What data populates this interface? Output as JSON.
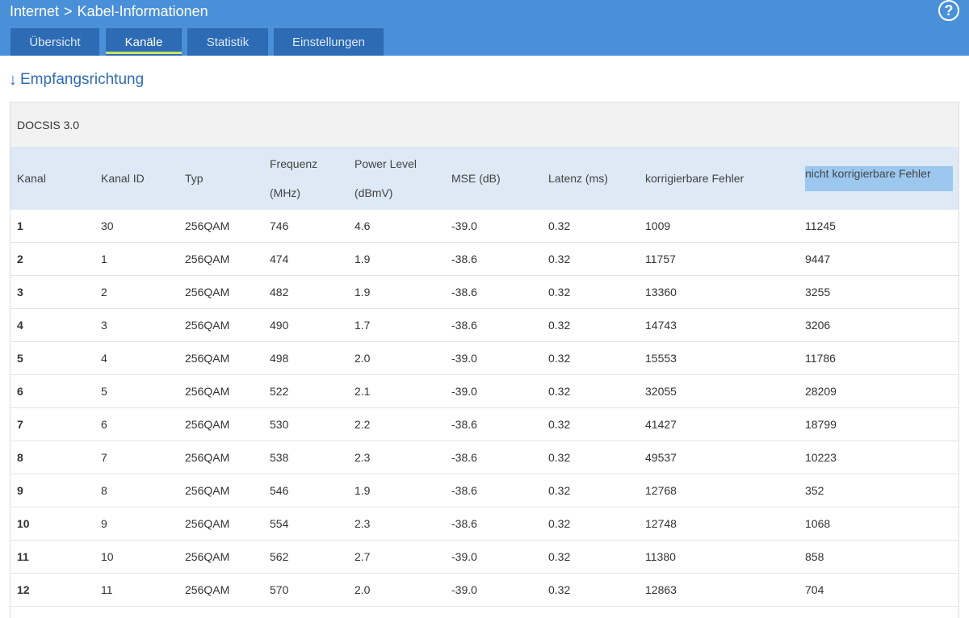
{
  "breadcrumb": {
    "root": "Internet",
    "separator": ">",
    "current": "Kabel-Informationen"
  },
  "help_label": "?",
  "tabs": [
    {
      "label": "Übersicht",
      "active": false
    },
    {
      "label": "Kanäle",
      "active": true
    },
    {
      "label": "Statistik",
      "active": false
    },
    {
      "label": "Einstellungen",
      "active": false
    }
  ],
  "section": {
    "arrow": "↓",
    "title": "Empfangsrichtung"
  },
  "panel_title": "DOCSIS 3.0",
  "columns": {
    "kanal": "Kanal",
    "kanal_id": "Kanal ID",
    "typ": "Typ",
    "frequenz_1": "Frequenz",
    "frequenz_2": "(MHz)",
    "power_1": "Power Level",
    "power_2": "(dBmV)",
    "mse": "MSE (dB)",
    "latenz": "Latenz (ms)",
    "korr": "korrigierbare Fehler",
    "nicht_korr": "nicht korrigierbare Fehler"
  },
  "rows": [
    [
      "1",
      "30",
      "256QAM",
      "746",
      "4.6",
      "-39.0",
      "0.32",
      "1009",
      "11245"
    ],
    [
      "2",
      "1",
      "256QAM",
      "474",
      "1.9",
      "-38.6",
      "0.32",
      "11757",
      "9447"
    ],
    [
      "3",
      "2",
      "256QAM",
      "482",
      "1.9",
      "-38.6",
      "0.32",
      "13360",
      "3255"
    ],
    [
      "4",
      "3",
      "256QAM",
      "490",
      "1.7",
      "-38.6",
      "0.32",
      "14743",
      "3206"
    ],
    [
      "5",
      "4",
      "256QAM",
      "498",
      "2.0",
      "-39.0",
      "0.32",
      "15553",
      "11786"
    ],
    [
      "6",
      "5",
      "256QAM",
      "522",
      "2.1",
      "-39.0",
      "0.32",
      "32055",
      "28209"
    ],
    [
      "7",
      "6",
      "256QAM",
      "530",
      "2.2",
      "-38.6",
      "0.32",
      "41427",
      "18799"
    ],
    [
      "8",
      "7",
      "256QAM",
      "538",
      "2.3",
      "-38.6",
      "0.32",
      "49537",
      "10223"
    ],
    [
      "9",
      "8",
      "256QAM",
      "546",
      "1.9",
      "-38.6",
      "0.32",
      "12768",
      "352"
    ],
    [
      "10",
      "9",
      "256QAM",
      "554",
      "2.3",
      "-38.6",
      "0.32",
      "12748",
      "1068"
    ],
    [
      "11",
      "10",
      "256QAM",
      "562",
      "2.7",
      "-39.0",
      "0.32",
      "11380",
      "858"
    ],
    [
      "12",
      "11",
      "256QAM",
      "570",
      "2.0",
      "-39.0",
      "0.32",
      "12863",
      "704"
    ]
  ],
  "colors": {
    "header_bar": "#4a90d9",
    "tab_bg": "#2d6bb5",
    "active_underline": "#c9e26a",
    "table_header": "#dde9f5",
    "selection": "#9cc8ef"
  }
}
